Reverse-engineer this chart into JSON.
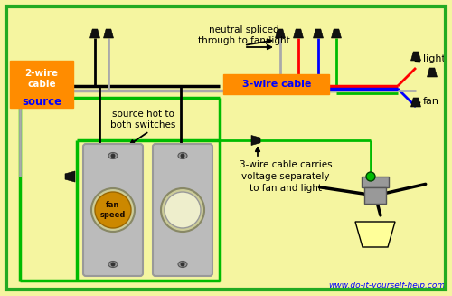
{
  "bg_color": "#f5f5a0",
  "border_color": "#22aa22",
  "wire_colors": {
    "black": "#000000",
    "neutral": "#aaaaaa",
    "green": "#00bb00",
    "red": "#ff0000",
    "blue": "#0000ff"
  },
  "orange": "#ff8c00",
  "gray": "#999999",
  "lgray": "#bbbbbb",
  "annotations": {
    "neutral": "neutral spliced\nthrough to fan/light",
    "source_hot": "source hot to\nboth switches",
    "carries": "3-wire cable carries\nvoltage separately\nto fan and light",
    "light": "light",
    "fan": "fan",
    "fan_speed": "fan\nspeed",
    "url": "www.do-it-yourself-help.com",
    "label2": "2-wire\ncable",
    "source": "source",
    "label3": "3-wire cable"
  },
  "figsize": [
    5.0,
    3.27
  ],
  "dpi": 100
}
